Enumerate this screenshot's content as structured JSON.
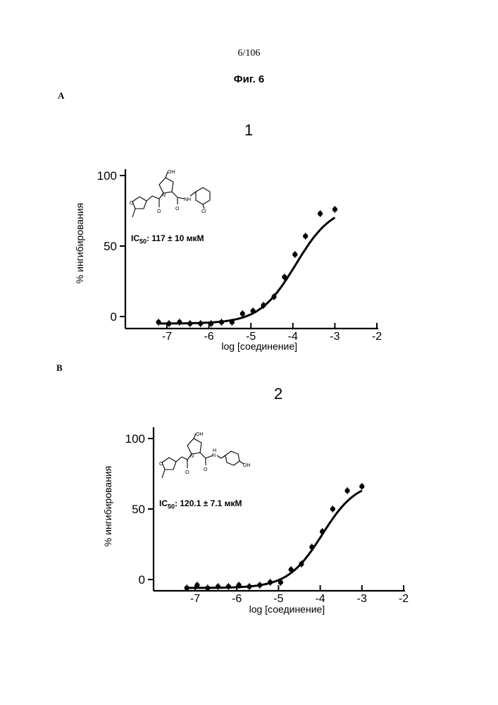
{
  "page_number": "6/106",
  "figure_title": "Фиг. 6",
  "panels": [
    {
      "letter": "A",
      "number": "1",
      "ic50_label": "IC",
      "ic50_sub": "50",
      "ic50_value": ": 117 ± 10 мкМ",
      "structure_labels": {
        "oh": "OH",
        "cl": "Cl",
        "nh": "NH",
        "n": "N",
        "o": "O",
        "ring_o": "O"
      }
    },
    {
      "letter": "B",
      "number": "2",
      "ic50_label": "IC",
      "ic50_sub": "50",
      "ic50_value": ": 120.1 ± 7.1 мкМ",
      "structure_labels": {
        "oh": "OH",
        "phenol_oh": "OH",
        "nh": "N",
        "h": "H",
        "n": "N",
        "o": "O",
        "ring_o": "O"
      }
    }
  ],
  "chart_data": [
    {
      "type": "scatter",
      "title": "1",
      "xlabel": "log [соединение]",
      "ylabel": "% ингибирования",
      "xlim": [
        -7.5,
        -2
      ],
      "ylim": [
        0,
        100
      ],
      "x_ticks": [
        -7,
        -6,
        -5,
        -4,
        -3,
        -2
      ],
      "x_tick_labels": [
        "-7",
        "-6",
        "-5",
        "-4",
        "-3",
        "-2"
      ],
      "y_ticks": [
        0,
        50,
        100
      ],
      "y_tick_labels": [
        "0",
        "50",
        "100"
      ],
      "series": [
        {
          "x": [
            -7.2,
            -6.95,
            -6.7,
            -6.45,
            -6.2,
            -5.95,
            -5.7,
            -5.45,
            -5.2,
            -4.95,
            -4.7,
            -4.45,
            -4.2,
            -3.95,
            -3.7,
            -3.35,
            -3.0
          ],
          "y": [
            -4,
            -5,
            -4,
            -5,
            -5,
            -5,
            -4,
            -4,
            2,
            4,
            8,
            14,
            28,
            44,
            57,
            73,
            76
          ]
        }
      ],
      "fit_curve": {
        "bottom": -5,
        "top": 79,
        "log_ic50": -3.93,
        "hill_slope": 1.0
      }
    },
    {
      "type": "scatter",
      "title": "2",
      "xlabel": "log [соединение]",
      "ylabel": "% ингибирования",
      "xlim": [
        -7.5,
        -2
      ],
      "ylim": [
        0,
        100
      ],
      "x_ticks": [
        -7,
        -6,
        -5,
        -4,
        -3,
        -2
      ],
      "x_tick_labels": [
        "-7",
        "-6",
        "-5",
        "-4",
        "-3",
        "-2"
      ],
      "y_ticks": [
        0,
        50,
        100
      ],
      "y_tick_labels": [
        "0",
        "50",
        "100"
      ],
      "series": [
        {
          "x": [
            -7.2,
            -6.95,
            -6.7,
            -6.45,
            -6.2,
            -5.95,
            -5.7,
            -5.45,
            -5.2,
            -4.95,
            -4.7,
            -4.45,
            -4.2,
            -3.95,
            -3.7,
            -3.35,
            -3.0
          ],
          "y": [
            -6,
            -4,
            -6,
            -5,
            -5,
            -4,
            -5,
            -4,
            -2,
            -2,
            7,
            11,
            23,
            34,
            50,
            63,
            66
          ]
        }
      ],
      "fit_curve": {
        "bottom": -6,
        "top": 70,
        "log_ic50": -3.95,
        "hill_slope": 1.05
      }
    }
  ]
}
